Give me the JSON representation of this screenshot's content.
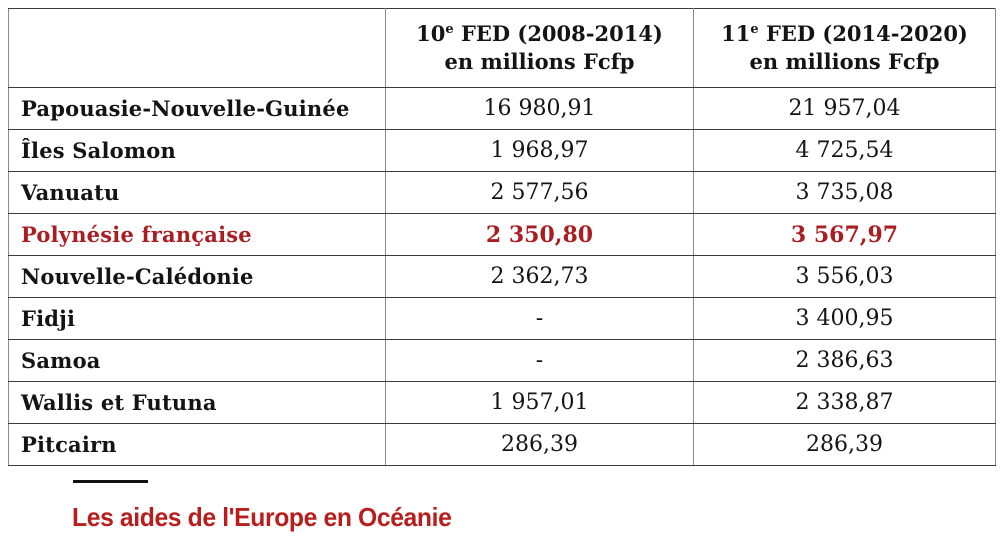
{
  "header": {
    "blank": "",
    "col1_num": "10",
    "col1_sup": "e",
    "col1_rest": " FED (2008-2014)",
    "col1_line2": "en millions Fcfp",
    "col2_num": "11",
    "col2_sup": "e",
    "col2_rest": " FED (2014-2020)",
    "col2_line2": "en millions Fcfp"
  },
  "chart_data": {
    "type": "table",
    "title": "Les aides de l'Europe en Océanie",
    "unit": "millions Fcfp",
    "columns": [
      "",
      "10e FED (2008-2014) en millions Fcfp",
      "11e FED (2014-2020) en millions Fcfp"
    ],
    "highlighted_row": "Polynésie française",
    "rows": [
      {
        "label": "Papouasie-Nouvelle-Guinée",
        "fed10": 16980.91,
        "fed11": 21957.04,
        "fed10_display": "16 980,91",
        "fed11_display": "21 957,04"
      },
      {
        "label": "Îles Salomon",
        "fed10": 1968.97,
        "fed11": 4725.54,
        "fed10_display": "1 968,97",
        "fed11_display": "4 725,54"
      },
      {
        "label": "Vanuatu",
        "fed10": 2577.56,
        "fed11": 3735.08,
        "fed10_display": "2 577,56",
        "fed11_display": "3 735,08"
      },
      {
        "label": "Polynésie française",
        "fed10": 2350.8,
        "fed11": 3567.97,
        "fed10_display": "2 350,80",
        "fed11_display": "3 567,97"
      },
      {
        "label": "Nouvelle-Calédonie",
        "fed10": 2362.73,
        "fed11": 3556.03,
        "fed10_display": "2 362,73",
        "fed11_display": "3 556,03"
      },
      {
        "label": "Fidji",
        "fed10": null,
        "fed11": 3400.95,
        "fed10_display": "-",
        "fed11_display": "3 400,95"
      },
      {
        "label": "Samoa",
        "fed10": null,
        "fed11": 2386.63,
        "fed10_display": "-",
        "fed11_display": "2 386,63"
      },
      {
        "label": "Wallis et Futuna",
        "fed10": 1957.01,
        "fed11": 2338.87,
        "fed10_display": "1 957,01",
        "fed11_display": "2 338,87"
      },
      {
        "label": "Pitcairn",
        "fed10": 286.39,
        "fed11": 286.39,
        "fed10_display": "286,39",
        "fed11_display": "286,39"
      }
    ]
  },
  "caption": {
    "text": "Les aides de l'Europe en Océanie"
  },
  "colors": {
    "highlight_red": "#a91e23",
    "caption_red": "#b71f1f",
    "border_dark": "#3c3c3c",
    "border_light": "#8a8a8a",
    "text": "#141414"
  }
}
